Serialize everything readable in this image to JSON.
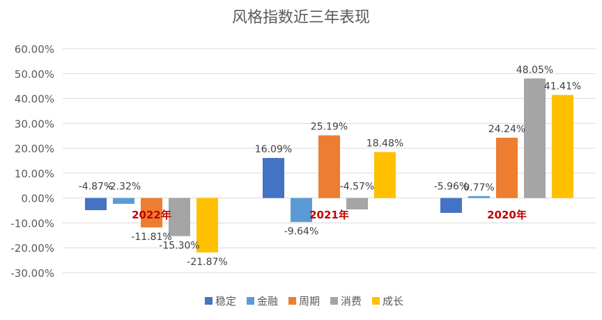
{
  "chart_data": {
    "type": "bar",
    "title": "风格指数近三年表现",
    "categories": [
      "2022年",
      "2021年",
      "2020年"
    ],
    "series": [
      {
        "name": "稳定",
        "color": "#4472C4",
        "values": [
          -4.87,
          16.09,
          -5.96
        ]
      },
      {
        "name": "金融",
        "color": "#5B9BD5",
        "values": [
          -2.32,
          -9.64,
          0.77
        ]
      },
      {
        "name": "周期",
        "color": "#ED7D31",
        "values": [
          -11.81,
          25.19,
          24.24
        ]
      },
      {
        "name": "消费",
        "color": "#A5A5A5",
        "values": [
          -15.3,
          -4.57,
          48.05
        ]
      },
      {
        "name": "成长",
        "color": "#FFC000",
        "values": [
          -21.87,
          18.48,
          41.41
        ]
      }
    ],
    "value_labels": [
      [
        "-4.87%",
        "16.09%",
        "-5.96%"
      ],
      [
        "-2.32%",
        "-9.64%",
        "0.77%"
      ],
      [
        "-11.81%",
        "25.19%",
        "24.24%"
      ],
      [
        "-15.30%",
        "-4.57%",
        "48.05%"
      ],
      [
        "-21.87%",
        "18.48%",
        "41.41%"
      ]
    ],
    "ylim": [
      -30,
      60
    ],
    "yticks": [
      -30,
      -20,
      -10,
      0,
      10,
      20,
      30,
      40,
      50,
      60
    ],
    "ytick_labels": [
      "-30.00%",
      "-20.00%",
      "-10.00%",
      "0.00%",
      "10.00%",
      "20.00%",
      "30.00%",
      "40.00%",
      "50.00%",
      "60.00%"
    ],
    "category_label_color": "#C00000",
    "grid": true,
    "legend": "bottom"
  }
}
